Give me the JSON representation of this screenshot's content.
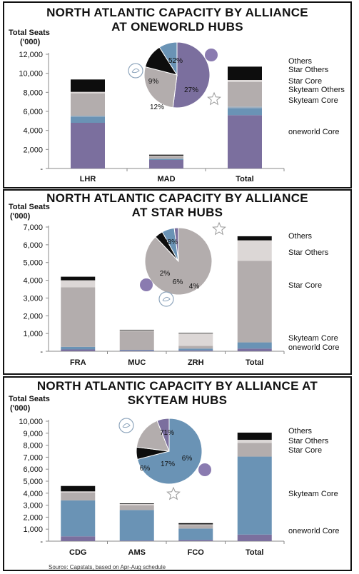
{
  "source": "Source: Capstats, based on Apr-Aug schedule",
  "colors": {
    "oneworld_core": "#7b6f9e",
    "skyteam_core": "#6a93b5",
    "skyteam_others": "#9fb0c0",
    "star_core": "#b3adad",
    "star_others": "#dcd7d6",
    "others": "#0d0d0d"
  },
  "chart_data": [
    {
      "type": "bar",
      "title_line1": "NORTH ATLANTIC CAPACITY BY ALLIANCE",
      "title_line2": "AT ONEWORLD HUBS",
      "ylabel_line1": "Total Seats",
      "ylabel_line2": "('000)",
      "ylim": [
        0,
        12000
      ],
      "ticks": [
        "-",
        "2,000",
        "4,000",
        "6,000",
        "8,000",
        "10,000",
        "12,000"
      ],
      "categories": [
        "LHR",
        "MAD",
        "Total"
      ],
      "series": [
        {
          "name": "oneworld  Core",
          "values": [
            4800,
            900,
            5600
          ]
        },
        {
          "name": "Skyteam Core",
          "values": [
            650,
            100,
            750
          ]
        },
        {
          "name": "Skyteam  Others",
          "values": [
            100,
            50,
            150
          ]
        },
        {
          "name": "Star Core",
          "values": [
            2350,
            250,
            2600
          ]
        },
        {
          "name": "Star Others",
          "values": [
            150,
            50,
            200
          ]
        },
        {
          "name": "Others",
          "values": [
            1300,
            100,
            1400
          ]
        }
      ],
      "pie": {
        "slices": [
          {
            "label": "52%",
            "value": 52
          },
          {
            "label": "27%",
            "value": 27
          },
          {
            "label": "12%",
            "value": 12
          },
          {
            "label": "9%",
            "value": 9
          }
        ]
      }
    },
    {
      "type": "bar",
      "title_line1": "NORTH ATLANTIC CAPACITY BY ALLIANCE",
      "title_line2": "AT STAR HUBS",
      "ylabel_line1": "Total Seats",
      "ylabel_line2": "('000)",
      "ylim": [
        0,
        7000
      ],
      "ticks": [
        "-",
        "1,000",
        "2,000",
        "3,000",
        "4,000",
        "5,000",
        "6,000",
        "7,000"
      ],
      "categories": [
        "FRA",
        "MUC",
        "ZRH",
        "Total"
      ],
      "series": [
        {
          "name": "oneworld Core",
          "values": [
            100,
            50,
            50,
            150
          ]
        },
        {
          "name": "Skyteam Core",
          "values": [
            150,
            30,
            100,
            350
          ]
        },
        {
          "name": "Star Core",
          "values": [
            3350,
            1050,
            150,
            4600
          ]
        },
        {
          "name": "Star Others",
          "values": [
            400,
            50,
            700,
            1150
          ]
        },
        {
          "name": "Others",
          "values": [
            200,
            30,
            30,
            230
          ]
        }
      ],
      "pie": {
        "slices": [
          {
            "label": "88%",
            "value": 88
          },
          {
            "label": "4%",
            "value": 4
          },
          {
            "label": "6%",
            "value": 6
          },
          {
            "label": "2%",
            "value": 2
          }
        ]
      }
    },
    {
      "type": "bar",
      "title_line1": "NORTH ATLANTIC CAPACITY BY ALLIANCE AT",
      "title_line2": "SKYTEAM HUBS",
      "ylabel_line1": "Total Seats",
      "ylabel_line2": "('000)",
      "ylim": [
        0,
        10000
      ],
      "ticks": [
        "-",
        "1,000",
        "2,000",
        "3,000",
        "4,000",
        "5,000",
        "6,000",
        "7,000",
        "8,000",
        "9,000",
        "10,000"
      ],
      "categories": [
        "CDG",
        "AMS",
        "FCO",
        "Total"
      ],
      "series": [
        {
          "name": "oneworld Core",
          "values": [
            400,
            50,
            100,
            550
          ]
        },
        {
          "name": "Skyteam Core",
          "values": [
            3000,
            2550,
            950,
            6500
          ]
        },
        {
          "name": "Star Core",
          "values": [
            650,
            400,
            300,
            1150
          ]
        },
        {
          "name": "Star Others",
          "values": [
            100,
            100,
            50,
            250
          ]
        },
        {
          "name": "Others",
          "values": [
            450,
            50,
            100,
            600
          ]
        }
      ],
      "pie": {
        "slices": [
          {
            "label": "71%",
            "value": 71
          },
          {
            "label": "6%",
            "value": 6
          },
          {
            "label": "17%",
            "value": 17
          },
          {
            "label": "6%",
            "value": 6
          }
        ]
      }
    }
  ]
}
